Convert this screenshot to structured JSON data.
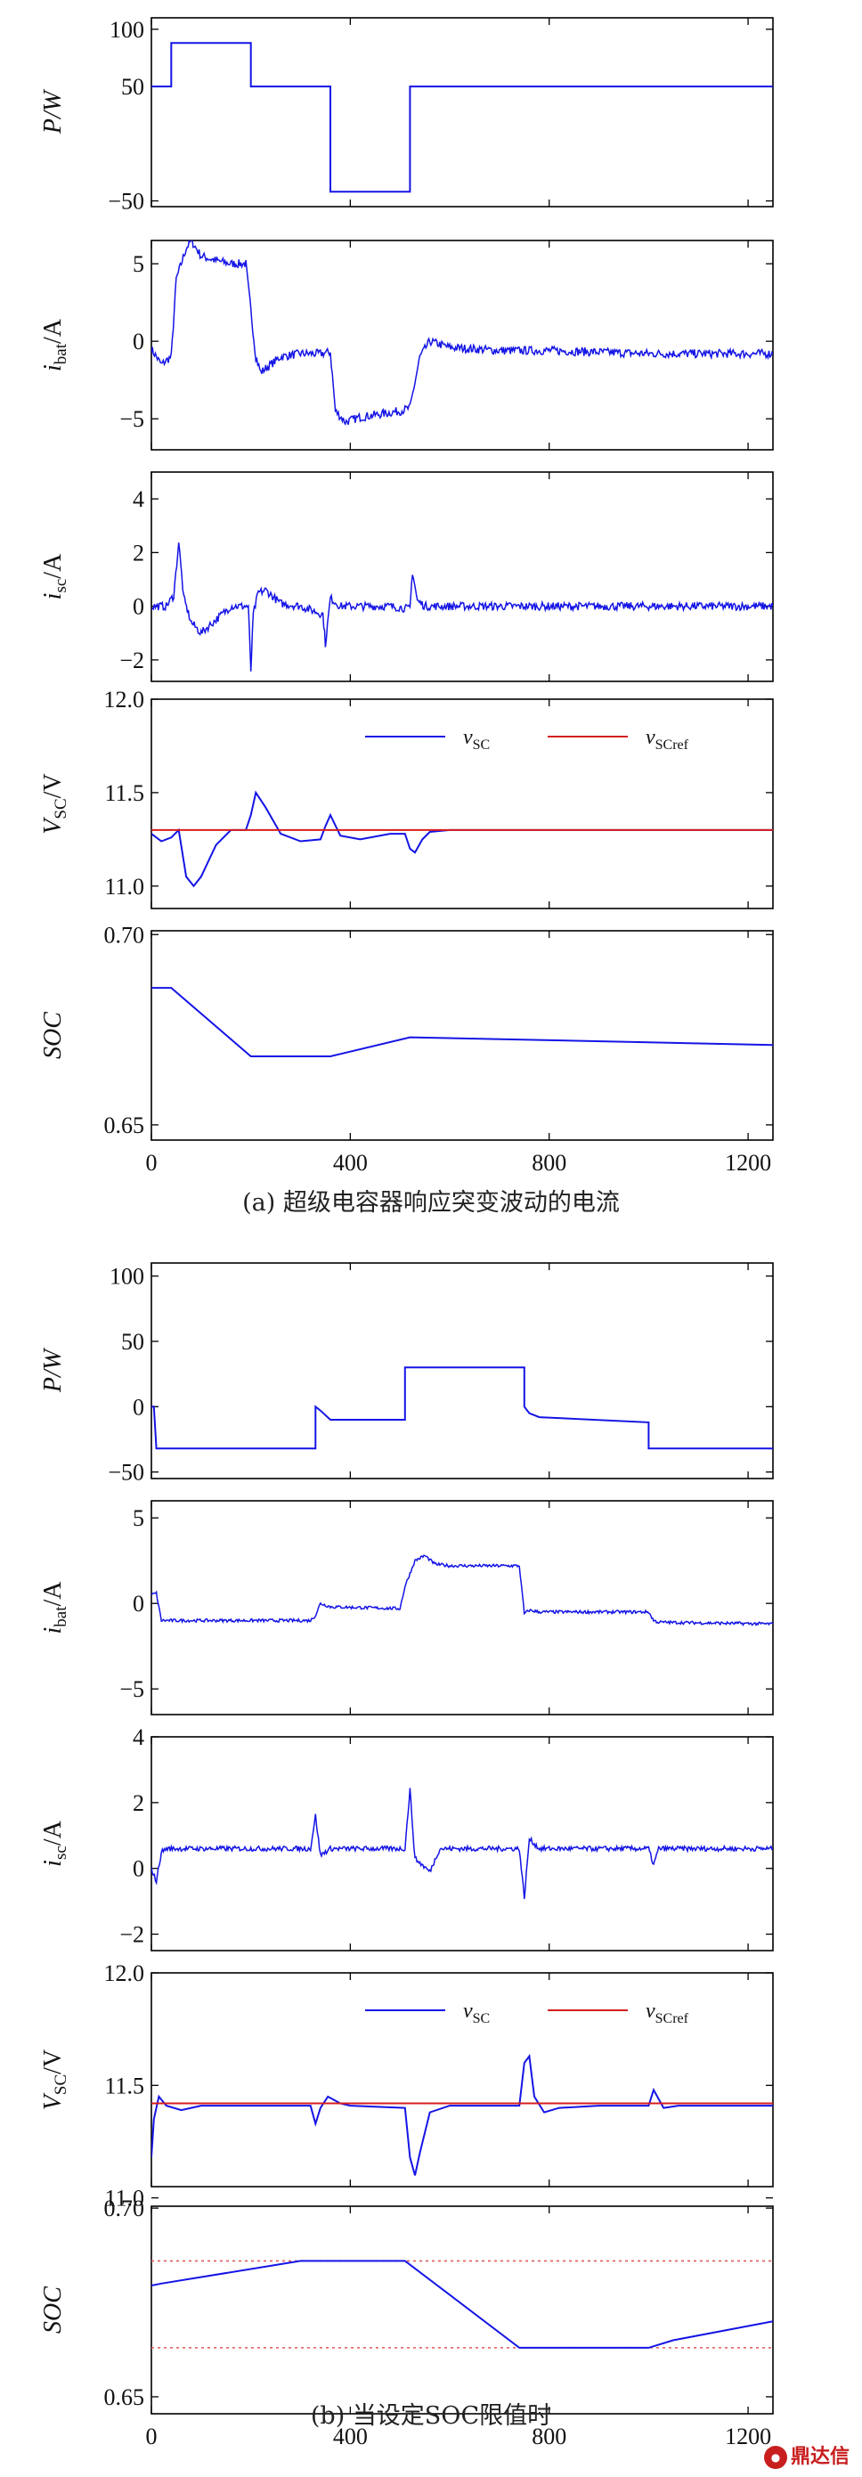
{
  "figure": {
    "caption_a": "(a) 超级电容器响应突变波动的电流",
    "caption_b": "(b) 当设定SOC限值时",
    "watermark": "鼎达信"
  },
  "colors": {
    "signal": "#1414e6",
    "reference": "#d61e1e",
    "axis": "#000000",
    "limit": "#e05a5a"
  },
  "chart_data": [
    {
      "id": "a-power",
      "type": "line",
      "group": "a",
      "ylabel": "P/W",
      "xlim": [
        0,
        1250
      ],
      "ylim": [
        -55,
        110
      ],
      "xticks": [
        0,
        400,
        800,
        1200
      ],
      "yticks": [
        100,
        50,
        -50
      ],
      "ytick_labels": [
        "100",
        "50",
        "−50"
      ],
      "series": [
        {
          "x": [
            0,
            40,
            40,
            200,
            200,
            360,
            360,
            520,
            520,
            1250
          ],
          "y": [
            50,
            50,
            88,
            88,
            50,
            50,
            -42,
            -42,
            50,
            50
          ]
        }
      ]
    },
    {
      "id": "a-ibat",
      "type": "line",
      "group": "a",
      "ylabel_main": "i",
      "ylabel_sub": "bat",
      "ylabel_tail": "/A",
      "xlim": [
        0,
        1250
      ],
      "ylim": [
        -7,
        6.5
      ],
      "xticks": [
        0,
        400,
        800,
        1200
      ],
      "yticks": [
        5,
        0,
        -5
      ],
      "noise": 0.55,
      "series": [
        {
          "x": [
            0,
            20,
            40,
            50,
            70,
            80,
            100,
            130,
            160,
            190,
            200,
            210,
            220,
            240,
            260,
            300,
            340,
            360,
            370,
            390,
            420,
            460,
            500,
            520,
            540,
            560,
            600,
            700,
            800,
            1000,
            1250
          ],
          "y": [
            -0.5,
            -1.5,
            -1,
            4,
            6,
            6.5,
            5.5,
            5.2,
            5,
            5,
            2,
            -1,
            -2,
            -1.5,
            -1,
            -0.8,
            -0.8,
            -0.7,
            -4.5,
            -5.2,
            -4.9,
            -4.7,
            -4.5,
            -4.3,
            -1,
            0,
            -0.4,
            -0.6,
            -0.6,
            -0.8,
            -0.8
          ]
        }
      ]
    },
    {
      "id": "a-isc",
      "type": "line",
      "group": "a",
      "ylabel_main": "i",
      "ylabel_sub": "sc",
      "ylabel_tail": "/A",
      "xlim": [
        0,
        1250
      ],
      "ylim": [
        -2.8,
        5
      ],
      "xticks": [
        0,
        400,
        800,
        1200
      ],
      "yticks": [
        4,
        2,
        0,
        -2
      ],
      "noise": 0.3,
      "series": [
        {
          "x": [
            0,
            30,
            45,
            55,
            65,
            80,
            100,
            130,
            160,
            195,
            200,
            205,
            215,
            230,
            260,
            300,
            345,
            350,
            360,
            380,
            420,
            480,
            520,
            525,
            535,
            550,
            600,
            800,
            1000,
            1250
          ],
          "y": [
            0,
            0,
            0.4,
            2.4,
            0.3,
            -0.6,
            -1,
            -0.5,
            0,
            0,
            -2.4,
            -0.3,
            0.5,
            0.6,
            0.1,
            0,
            -0.3,
            -1.4,
            0.3,
            0,
            0,
            0,
            -0.1,
            1.3,
            0.2,
            0,
            0,
            0,
            0,
            0
          ]
        }
      ]
    },
    {
      "id": "a-vsc",
      "type": "line",
      "group": "a",
      "ylabel_main": "V",
      "ylabel_sub": "SC",
      "ylabel_tail": "/V",
      "xlim": [
        0,
        1250
      ],
      "ylim": [
        10.88,
        12.0
      ],
      "xticks": [
        0,
        400,
        800,
        1200
      ],
      "yticks": [
        12.0,
        11.5,
        11.0
      ],
      "ytick_labels": [
        "12.0",
        "11.5",
        "11.0"
      ],
      "legend": [
        "v",
        "SC",
        "v",
        "SCref"
      ],
      "series": [
        {
          "name": "vSC",
          "x": [
            0,
            20,
            40,
            55,
            70,
            85,
            100,
            130,
            160,
            190,
            200,
            210,
            230,
            260,
            300,
            340,
            350,
            360,
            380,
            420,
            480,
            510,
            520,
            530,
            545,
            560,
            600,
            1250
          ],
          "y": [
            11.28,
            11.24,
            11.26,
            11.3,
            11.05,
            11.0,
            11.05,
            11.22,
            11.3,
            11.3,
            11.38,
            11.5,
            11.42,
            11.28,
            11.24,
            11.25,
            11.32,
            11.38,
            11.27,
            11.25,
            11.28,
            11.28,
            11.2,
            11.18,
            11.25,
            11.29,
            11.3,
            11.3
          ]
        },
        {
          "name": "vSCref",
          "x": [
            0,
            1250
          ],
          "y": [
            11.3,
            11.3
          ]
        }
      ]
    },
    {
      "id": "a-soc",
      "type": "line",
      "group": "a",
      "ylabel": "SOC",
      "xlim": [
        0,
        1250
      ],
      "ylim": [
        0.646,
        0.701
      ],
      "xticks": [
        0,
        400,
        800,
        1200
      ],
      "yticks": [
        0.7,
        0.65
      ],
      "ytick_labels": [
        "0.70",
        "0.65"
      ],
      "xlabels_shown": true,
      "series": [
        {
          "x": [
            0,
            40,
            200,
            360,
            520,
            1250
          ],
          "y": [
            0.686,
            0.686,
            0.668,
            0.668,
            0.673,
            0.671
          ]
        }
      ]
    },
    {
      "id": "b-power",
      "type": "line",
      "group": "b",
      "ylabel": "P/W",
      "xlim": [
        0,
        1250
      ],
      "ylim": [
        -55,
        110
      ],
      "xticks": [
        0,
        400,
        800,
        1200
      ],
      "yticks": [
        100,
        50,
        0,
        -50
      ],
      "ytick_labels": [
        "100",
        "50",
        "0",
        "−50"
      ],
      "series": [
        {
          "x": [
            0,
            5,
            10,
            330,
            330,
            340,
            360,
            510,
            510,
            750,
            750,
            760,
            780,
            1000,
            1000,
            1250
          ],
          "y": [
            0,
            0,
            -32,
            -32,
            0,
            -3,
            -10,
            -10,
            30,
            30,
            0,
            -5,
            -8,
            -12,
            -32,
            -32
          ]
        }
      ]
    },
    {
      "id": "b-ibat",
      "type": "line",
      "group": "b",
      "ylabel_main": "i",
      "ylabel_sub": "bat",
      "ylabel_tail": "/A",
      "xlim": [
        0,
        1250
      ],
      "ylim": [
        -6.5,
        6
      ],
      "xticks": [
        0,
        400,
        800,
        1200
      ],
      "yticks": [
        5,
        0,
        -5
      ],
      "noise": 0.18,
      "series": [
        {
          "x": [
            0,
            10,
            20,
            320,
            330,
            340,
            360,
            500,
            510,
            530,
            550,
            570,
            600,
            740,
            750,
            760,
            780,
            1000,
            1010,
            1020,
            1250
          ],
          "y": [
            0.5,
            0.6,
            -1,
            -1,
            -0.7,
            0,
            -0.2,
            -0.3,
            1,
            2.5,
            2.8,
            2.3,
            2.2,
            2.2,
            -0.6,
            -0.4,
            -0.5,
            -0.5,
            -1,
            -1.1,
            -1.2
          ]
        }
      ]
    },
    {
      "id": "b-isc",
      "type": "line",
      "group": "b",
      "ylabel_main": "i",
      "ylabel_sub": "sc",
      "ylabel_tail": "/A",
      "xlim": [
        0,
        1250
      ],
      "ylim": [
        -2.5,
        4
      ],
      "xticks": [
        0,
        400,
        800,
        1200
      ],
      "yticks": [
        4,
        2,
        0,
        -2
      ],
      "noise": 0.15,
      "series": [
        {
          "x": [
            0,
            10,
            20,
            30,
            320,
            330,
            340,
            360,
            510,
            520,
            530,
            560,
            580,
            740,
            750,
            760,
            780,
            1000,
            1010,
            1020,
            1250
          ],
          "y": [
            0,
            -0.4,
            0.5,
            0.6,
            0.6,
            1.6,
            0.4,
            0.6,
            0.6,
            2.4,
            0.3,
            -0.1,
            0.6,
            0.6,
            -0.9,
            0.9,
            0.6,
            0.6,
            0.1,
            0.6,
            0.6
          ]
        }
      ]
    },
    {
      "id": "b-vsc",
      "type": "line",
      "group": "b",
      "ylabel_main": "V",
      "ylabel_sub": "SC",
      "ylabel_tail": "/V",
      "xlim": [
        0,
        1250
      ],
      "ylim": [
        11.05,
        12.0
      ],
      "xticks": [
        0,
        400,
        800,
        1200
      ],
      "yticks": [
        12.0,
        11.5,
        11.0
      ],
      "ytick_labels": [
        "12.0",
        "11.5",
        "11.0"
      ],
      "legend": [
        "v",
        "SC",
        "v",
        "SCref"
      ],
      "series": [
        {
          "name": "vSC",
          "x": [
            0,
            5,
            15,
            30,
            60,
            80,
            100,
            320,
            330,
            340,
            355,
            380,
            400,
            510,
            520,
            530,
            540,
            560,
            600,
            740,
            750,
            760,
            770,
            790,
            820,
            900,
            1000,
            1010,
            1030,
            1060,
            1250
          ],
          "y": [
            11.18,
            11.35,
            11.45,
            11.41,
            11.39,
            11.4,
            11.41,
            11.41,
            11.33,
            11.4,
            11.45,
            11.42,
            11.41,
            11.4,
            11.18,
            11.1,
            11.2,
            11.38,
            11.41,
            11.41,
            11.6,
            11.63,
            11.45,
            11.38,
            11.4,
            11.41,
            11.41,
            11.48,
            11.4,
            11.41,
            11.41
          ]
        },
        {
          "name": "vSCref",
          "x": [
            0,
            1250
          ],
          "y": [
            11.42,
            11.42
          ]
        }
      ]
    },
    {
      "id": "b-soc",
      "type": "line",
      "group": "b",
      "ylabel": "SOC",
      "xlim": [
        0,
        1250
      ],
      "ylim": [
        0.6455,
        0.7005
      ],
      "xticks": [
        0,
        400,
        800,
        1200
      ],
      "yticks": [
        0.7,
        0.65
      ],
      "ytick_labels": [
        "0.70",
        "0.65"
      ],
      "xlabels_shown": true,
      "limits": [
        0.686,
        0.663
      ],
      "series": [
        {
          "x": [
            0,
            20,
            300,
            510,
            740,
            1000,
            1050,
            1250
          ],
          "y": [
            0.6795,
            0.68,
            0.686,
            0.686,
            0.663,
            0.663,
            0.665,
            0.67
          ]
        }
      ]
    }
  ]
}
